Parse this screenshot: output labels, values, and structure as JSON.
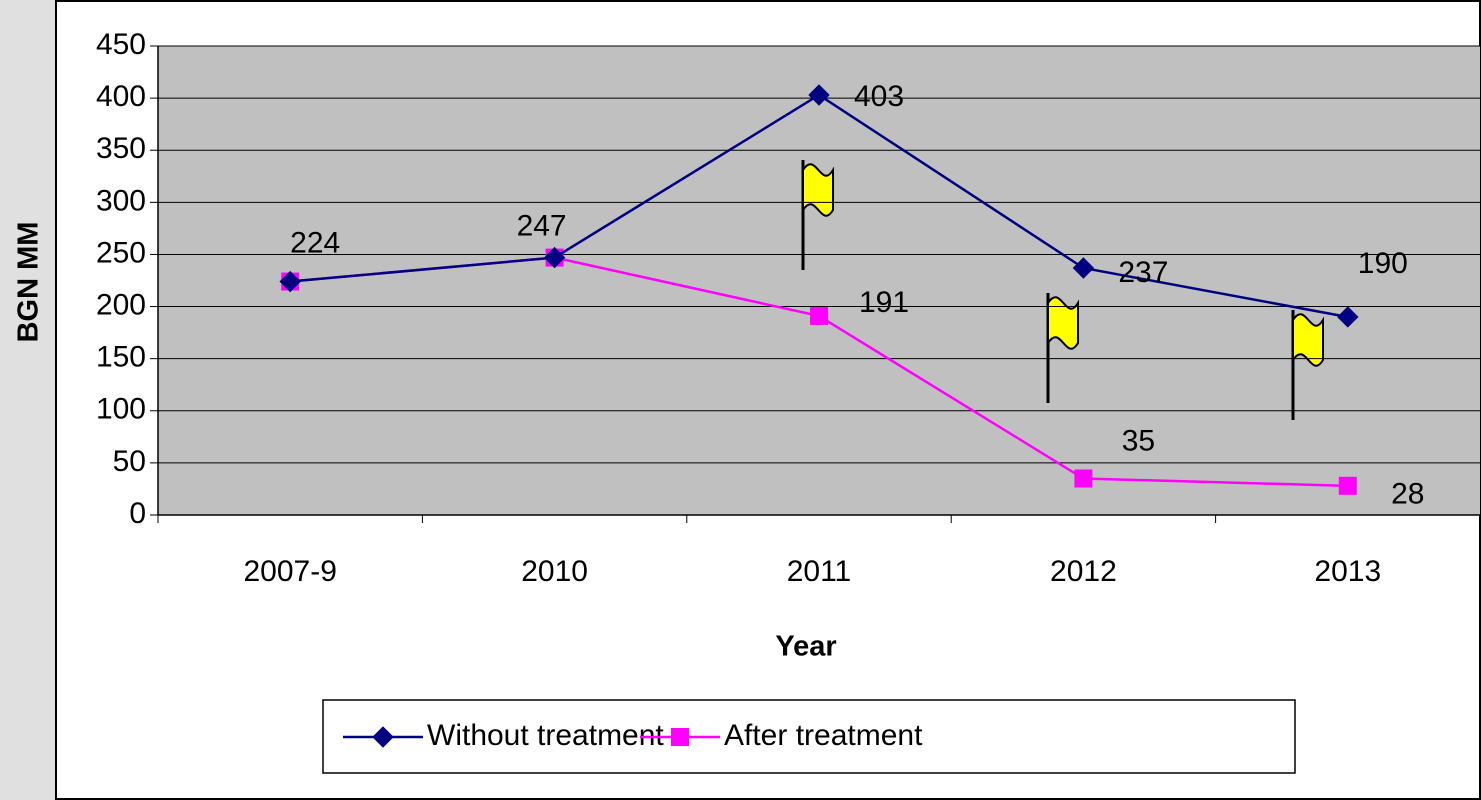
{
  "chart_data": {
    "type": "line",
    "xlabel": "Year",
    "ylabel": "BGN MM",
    "categories": [
      "2007-9",
      "2010",
      "2011",
      "2012",
      "2013"
    ],
    "series": [
      {
        "name": "Without treatment",
        "color": "#000080",
        "marker": "diamond",
        "values": [
          224,
          247,
          403,
          237,
          190
        ]
      },
      {
        "name": "After treatment",
        "color": "#ff00ff",
        "marker": "square",
        "values": [
          224,
          247,
          191,
          35,
          28
        ]
      }
    ],
    "ylim": [
      0,
      450
    ],
    "yticks": [
      0,
      50,
      100,
      150,
      200,
      250,
      300,
      350,
      400,
      450
    ],
    "grid": true,
    "legend": "bottom"
  }
}
